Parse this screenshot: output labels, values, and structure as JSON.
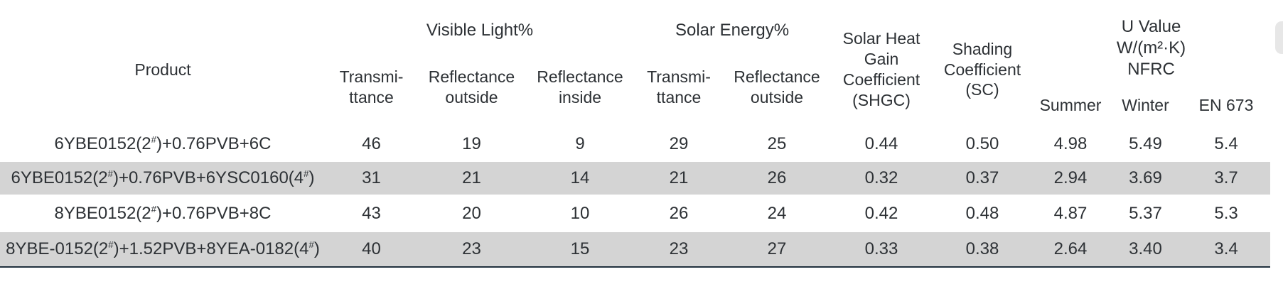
{
  "colors": {
    "line": "#2e4456",
    "line_thick": "#20303d",
    "row_alt": "#d4d4d4",
    "text": "#2d3135",
    "thumb": "#e7e7e7"
  },
  "table": {
    "header": {
      "product": "Product",
      "groups": {
        "visible_light": "Visible Light%",
        "solar_energy": "Solar Energy%",
        "u_value": "U Value\nW/(m²·K)\nNFRC"
      },
      "sub": {
        "vl_transmittance": "Transmi-\nttance",
        "vl_reflectance_outside": "Reflectance\noutside",
        "vl_reflectance_inside": "Reflectance\ninside",
        "se_transmittance": "Transmi-\nttance",
        "se_reflectance_outside": "Reflectance\noutside",
        "shgc": "Solar Heat\nGain\nCoefficient\n(SHGC)",
        "sc": "Shading\nCoefficient\n(SC)",
        "u_summer": "Summer",
        "u_winter": "Winter",
        "u_en673": "EN 673"
      }
    },
    "rows": [
      {
        "product": "6YBE0152(2#)+0.76PVB+6C",
        "values": [
          "46",
          "19",
          "9",
          "29",
          "25",
          "0.44",
          "0.50",
          "4.98",
          "5.49",
          "5.4"
        ]
      },
      {
        "product": "6YBE0152(2#)+0.76PVB+6YSC0160(4#)",
        "values": [
          "31",
          "21",
          "14",
          "21",
          "26",
          "0.32",
          "0.37",
          "2.94",
          "3.69",
          "3.7"
        ]
      },
      {
        "product": "8YBE0152(2#)+0.76PVB+8C",
        "values": [
          "43",
          "20",
          "10",
          "26",
          "24",
          "0.42",
          "0.48",
          "4.87",
          "5.37",
          "5.3"
        ]
      },
      {
        "product": "8YBE-0152(2#)+1.52PVB+8YEA-0182(4#)",
        "values": [
          "40",
          "23",
          "15",
          "23",
          "27",
          "0.33",
          "0.38",
          "2.64",
          "3.40",
          "3.4"
        ]
      }
    ]
  }
}
